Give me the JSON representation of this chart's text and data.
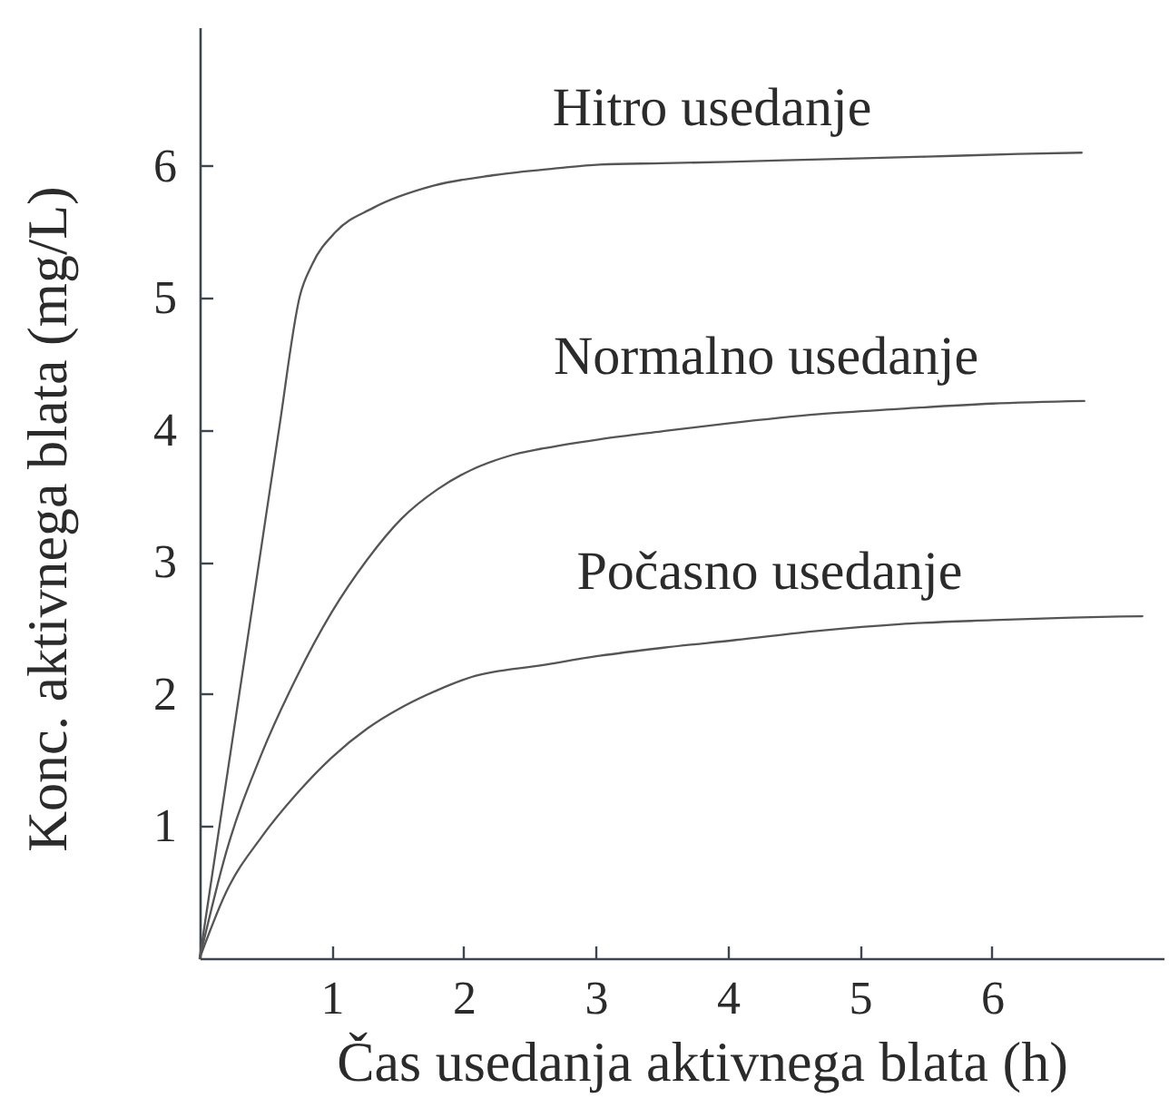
{
  "chart_data": {
    "type": "line",
    "xlabel": "Čas usedanja aktivnega blata (h)",
    "ylabel": "Konc. aktivnega blata (mg/L)",
    "xlim": [
      0,
      7.3
    ],
    "ylim": [
      0,
      7.05
    ],
    "xticks": [
      1,
      2,
      3,
      4,
      5,
      6
    ],
    "yticks": [
      1,
      2,
      3,
      4,
      5,
      6
    ],
    "grid": false,
    "legend": false,
    "marker": "none",
    "line_style": "solid",
    "series": [
      {
        "name": "Hitro usedanje",
        "color": "#555555",
        "x": [
          0,
          0.15,
          0.3,
          0.45,
          0.6,
          0.76,
          0.85,
          1.03,
          1.31,
          1.77,
          2.23,
          2.69,
          3.03,
          3.5,
          4.0,
          4.7,
          5.5,
          6.2,
          6.68
        ],
        "values": [
          0,
          1,
          2,
          3,
          4,
          5.02,
          5.25,
          5.5,
          5.68,
          5.85,
          5.93,
          5.98,
          6.01,
          6.02,
          6.03,
          6.05,
          6.07,
          6.09,
          6.1
        ]
      },
      {
        "name": "Normalno usedanje",
        "color": "#555555",
        "x": [
          0,
          0.2,
          0.47,
          0.73,
          1.0,
          1.27,
          1.53,
          1.8,
          2.0,
          2.33,
          2.6,
          3.03,
          3.5,
          4.0,
          4.69,
          5.3,
          6.0,
          6.7
        ],
        "values": [
          0,
          0.8,
          1.55,
          2.12,
          2.62,
          3.02,
          3.33,
          3.55,
          3.67,
          3.8,
          3.86,
          3.93,
          3.99,
          4.05,
          4.12,
          4.16,
          4.2,
          4.22
        ]
      },
      {
        "name": "Počasno usedanje",
        "color": "#555555",
        "x": [
          0,
          0.2,
          0.47,
          0.73,
          1.0,
          1.27,
          1.53,
          1.8,
          2.06,
          2.6,
          3.03,
          3.5,
          4.06,
          4.69,
          5.3,
          6.0,
          6.6,
          7.14
        ],
        "values": [
          0,
          0.5,
          0.92,
          1.24,
          1.52,
          1.74,
          1.9,
          2.03,
          2.13,
          2.22,
          2.29,
          2.35,
          2.41,
          2.48,
          2.53,
          2.56,
          2.58,
          2.59
        ]
      }
    ]
  }
}
